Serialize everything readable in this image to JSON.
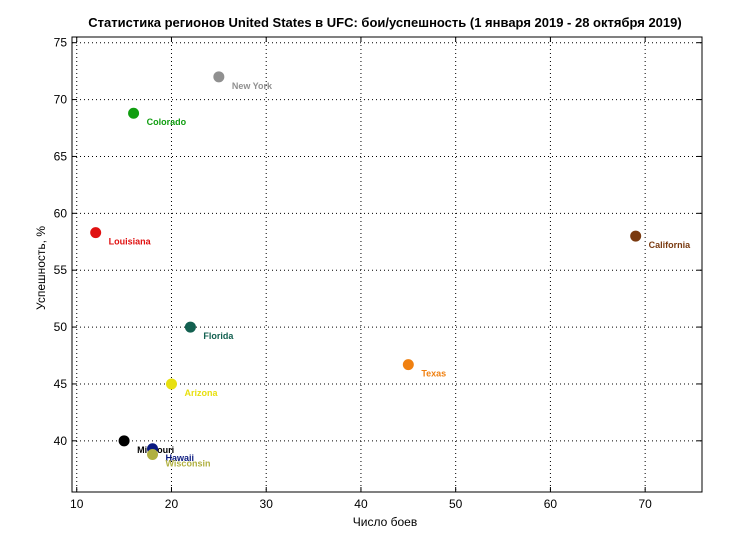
{
  "chart_data": {
    "type": "scatter",
    "title": "Статистика регионов United States в UFC: бои/успешность (1 января 2019 - 28 октября 2019)",
    "xlabel": "Число боев",
    "ylabel": "Успешность, %",
    "xlim": [
      9.5,
      76
    ],
    "ylim": [
      35.5,
      75.5
    ],
    "xticks": [
      10,
      20,
      30,
      40,
      50,
      60,
      70
    ],
    "yticks": [
      40,
      45,
      50,
      55,
      60,
      65,
      70,
      75
    ],
    "grid": true,
    "points": [
      {
        "label": "New York",
        "x": 25,
        "y": 72.0,
        "color": "#909090"
      },
      {
        "label": "Colorado",
        "x": 16,
        "y": 68.8,
        "color": "#119e11"
      },
      {
        "label": "Louisiana",
        "x": 12,
        "y": 58.3,
        "color": "#e01010"
      },
      {
        "label": "California",
        "x": 69,
        "y": 58.0,
        "color": "#7a3a10"
      },
      {
        "label": "Florida",
        "x": 22,
        "y": 50.0,
        "color": "#136050"
      },
      {
        "label": "Texas",
        "x": 45,
        "y": 46.7,
        "color": "#f08010"
      },
      {
        "label": "Arizona",
        "x": 20,
        "y": 45.0,
        "color": "#e8e010"
      },
      {
        "label": "Missouri",
        "x": 15,
        "y": 40.0,
        "color": "#000000"
      },
      {
        "label": "Hawaii",
        "x": 18,
        "y": 39.3,
        "color": "#0a1a80"
      },
      {
        "label": "Wisconsin",
        "x": 18,
        "y": 38.8,
        "color": "#b0b040"
      }
    ]
  }
}
